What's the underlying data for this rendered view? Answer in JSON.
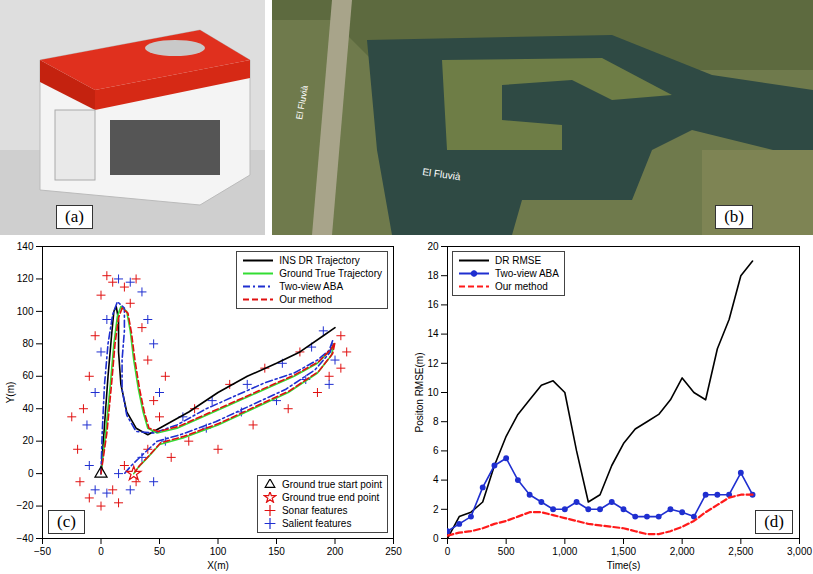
{
  "panels": [
    {
      "panel": "(a)"
    },
    {
      "panel": "(b)",
      "texts": [
        "El Fluvià",
        "El Fluvià"
      ]
    }
  ],
  "chart_data": [
    {
      "type": "line",
      "panel": "(c)",
      "xlabel": "X(m)",
      "ylabel": "Y(m)",
      "xlim": [
        -50,
        250
      ],
      "xticks": [
        -50,
        0,
        50,
        100,
        150,
        200,
        250
      ],
      "ylim": [
        -40,
        140
      ],
      "yticks": [
        -40,
        -20,
        0,
        20,
        40,
        60,
        80,
        100,
        120,
        140
      ],
      "legend": "top-right",
      "series": [
        {
          "name": "INS DR Trajectory",
          "color": "#000000",
          "line_style": "solid",
          "x": [
            0,
            3,
            6,
            9,
            11,
            13,
            15,
            15,
            17,
            22,
            30,
            40,
            55,
            75,
            100,
            125,
            150,
            170,
            190,
            200
          ],
          "y": [
            0,
            30,
            60,
            85,
            100,
            103,
            95,
            75,
            55,
            38,
            28,
            24,
            30,
            38,
            50,
            60,
            68,
            75,
            85,
            90
          ]
        },
        {
          "name": "Ground True Trajectory",
          "color": "#33dd33",
          "line_style": "solid",
          "x": [
            0,
            4,
            8,
            11,
            14,
            17,
            22,
            25,
            28,
            32,
            36,
            40,
            48,
            65,
            90,
            115,
            140,
            165,
            185,
            196,
            199,
            197,
            185,
            160,
            130,
            100,
            70,
            50,
            40,
            32,
            28
          ],
          "y": [
            0,
            25,
            55,
            80,
            97,
            103,
            100,
            88,
            70,
            52,
            38,
            28,
            25,
            28,
            36,
            44,
            52,
            60,
            68,
            76,
            80,
            73,
            62,
            50,
            40,
            30,
            22,
            18,
            10,
            4,
            0
          ]
        },
        {
          "name": "Two-view ABA",
          "color": "#1f2fd0",
          "line_style": "dashdot",
          "x": [
            0,
            1,
            3,
            6,
            10,
            14,
            20,
            20,
            18,
            18,
            22,
            30,
            45,
            65,
            90,
            115,
            140,
            165,
            185,
            195,
            198,
            196,
            183,
            158,
            128,
            98,
            68,
            48,
            36,
            26,
            20
          ],
          "y": [
            0,
            25,
            55,
            80,
            98,
            106,
            102,
            88,
            70,
            52,
            36,
            26,
            25,
            30,
            40,
            48,
            56,
            62,
            70,
            76,
            82,
            75,
            64,
            52,
            42,
            32,
            24,
            20,
            12,
            5,
            0
          ]
        },
        {
          "name": "Our method",
          "color": "#e01010",
          "line_style": "dashed",
          "x": [
            0,
            5,
            9,
            12,
            15,
            18,
            23,
            26,
            29,
            33,
            37,
            41,
            49,
            66,
            91,
            116,
            141,
            166,
            186,
            197,
            200,
            198,
            186,
            161,
            131,
            101,
            71,
            51,
            41,
            33,
            29
          ],
          "y": [
            0,
            25,
            55,
            80,
            96,
            102,
            99,
            87,
            70,
            52,
            38,
            28,
            26,
            29,
            37,
            45,
            53,
            61,
            69,
            77,
            81,
            74,
            63,
            51,
            41,
            31,
            23,
            19,
            11,
            5,
            1
          ]
        }
      ],
      "points": [
        {
          "name": "Ground true start point",
          "color": "#000000",
          "marker": "triangle",
          "x": [
            0
          ],
          "y": [
            0
          ]
        },
        {
          "name": "Ground true end point",
          "color": "#e01010",
          "marker": "star",
          "x": [
            28
          ],
          "y": [
            0
          ]
        },
        {
          "name": "Sonar features",
          "color": "#e01010",
          "marker": "plus",
          "x": [
            -25,
            -20,
            -15,
            -10,
            -5,
            0,
            5,
            10,
            20,
            25,
            30,
            -18,
            -10,
            0,
            10,
            15,
            20,
            30,
            40,
            50,
            45,
            55,
            40,
            35,
            60,
            75,
            80,
            100,
            110,
            130,
            140,
            160,
            170,
            185,
            195,
            205,
            210,
            205
          ],
          "y": [
            35,
            15,
            40,
            60,
            85,
            110,
            122,
            118,
            115,
            105,
            120,
            -5,
            -15,
            -20,
            -10,
            -18,
            5,
            -5,
            15,
            35,
            45,
            60,
            70,
            90,
            10,
            20,
            40,
            15,
            55,
            30,
            65,
            40,
            75,
            50,
            60,
            65,
            75,
            85
          ]
        },
        {
          "name": "Salient features",
          "color": "#1f2fd0",
          "marker": "plus",
          "x": [
            -12,
            -5,
            0,
            5,
            15,
            25,
            35,
            40,
            45,
            -10,
            -5,
            5,
            15,
            25,
            35,
            45,
            55,
            50,
            70,
            90,
            95,
            120,
            125,
            150,
            155,
            175,
            180,
            195,
            200,
            190
          ],
          "y": [
            30,
            50,
            75,
            95,
            120,
            118,
            112,
            95,
            80,
            5,
            -10,
            -12,
            0,
            -10,
            10,
            -5,
            20,
            50,
            35,
            28,
            45,
            38,
            55,
            45,
            68,
            58,
            78,
            55,
            70,
            88
          ]
        }
      ]
    },
    {
      "type": "line",
      "panel": "(d)",
      "xlabel": "Time(s)",
      "ylabel": "Positon RMSE(m)",
      "xlim": [
        0,
        3000
      ],
      "xticks": [
        0,
        500,
        1000,
        1500,
        2000,
        2500,
        3000
      ],
      "ylim": [
        0,
        20
      ],
      "yticks": [
        0,
        2,
        4,
        6,
        8,
        10,
        12,
        14,
        16,
        18,
        20
      ],
      "legend": "top-left",
      "x": [
        0,
        100,
        200,
        300,
        400,
        500,
        600,
        700,
        800,
        900,
        1000,
        1100,
        1200,
        1300,
        1400,
        1500,
        1600,
        1700,
        1800,
        1900,
        2000,
        2100,
        2200,
        2300,
        2400,
        2500,
        2600
      ],
      "series": [
        {
          "name": "DR RMSE",
          "color": "#000000",
          "line_style": "solid",
          "values": [
            0,
            1.5,
            1.8,
            2.5,
            5,
            7,
            8.5,
            9.5,
            10.5,
            10.8,
            10,
            6,
            2.5,
            3,
            5,
            6.5,
            7.5,
            8,
            8.5,
            9.5,
            11,
            10,
            9.5,
            13,
            15,
            18,
            19
          ]
        },
        {
          "name": "Two-view ABA",
          "color": "#1f2fd0",
          "line_style": "solid",
          "marker": "circle",
          "values": [
            0.5,
            1,
            1.5,
            3.5,
            5,
            5.5,
            4,
            3,
            2.5,
            2,
            2,
            2.5,
            2,
            2,
            2.5,
            2,
            1.5,
            1.5,
            1.5,
            2,
            1.8,
            1.5,
            3,
            3,
            3,
            4.5,
            3
          ]
        },
        {
          "name": "Our method",
          "color": "#ff1a1a",
          "line_style": "dashed",
          "values": [
            0.2,
            0.4,
            0.5,
            0.7,
            1,
            1.2,
            1.5,
            1.8,
            1.8,
            1.6,
            1.4,
            1.2,
            1,
            0.9,
            0.8,
            0.7,
            0.5,
            0.3,
            0.3,
            0.5,
            0.8,
            1.2,
            1.8,
            2.3,
            2.8,
            3,
            3
          ]
        }
      ]
    }
  ]
}
